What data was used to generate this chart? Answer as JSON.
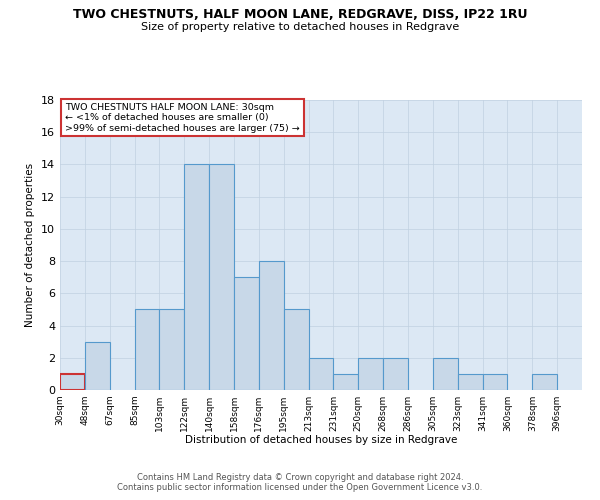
{
  "title": "TWO CHESTNUTS, HALF MOON LANE, REDGRAVE, DISS, IP22 1RU",
  "subtitle": "Size of property relative to detached houses in Redgrave",
  "xlabel": "Distribution of detached houses by size in Redgrave",
  "ylabel": "Number of detached properties",
  "bin_labels": [
    "30sqm",
    "48sqm",
    "67sqm",
    "85sqm",
    "103sqm",
    "122sqm",
    "140sqm",
    "158sqm",
    "176sqm",
    "195sqm",
    "213sqm",
    "231sqm",
    "250sqm",
    "268sqm",
    "286sqm",
    "305sqm",
    "323sqm",
    "341sqm",
    "360sqm",
    "378sqm",
    "396sqm"
  ],
  "counts": [
    1,
    3,
    0,
    5,
    5,
    14,
    14,
    7,
    8,
    5,
    2,
    1,
    2,
    2,
    0,
    2,
    1,
    1,
    0,
    1,
    0
  ],
  "bar_color": "#c8d8e8",
  "bar_edge_color": "#5599cc",
  "highlight_bin": 0,
  "highlight_edge_color": "#cc3333",
  "annotation_lines": [
    "TWO CHESTNUTS HALF MOON LANE: 30sqm",
    "← <1% of detached houses are smaller (0)",
    ">99% of semi-detached houses are larger (75) →"
  ],
  "annotation_box_edge": "#cc3333",
  "ylim": [
    0,
    18
  ],
  "yticks": [
    0,
    2,
    4,
    6,
    8,
    10,
    12,
    14,
    16,
    18
  ],
  "grid_color": "#c0d0e0",
  "bg_color": "#dce8f4",
  "footer_line1": "Contains HM Land Registry data © Crown copyright and database right 2024.",
  "footer_line2": "Contains public sector information licensed under the Open Government Licence v3.0."
}
